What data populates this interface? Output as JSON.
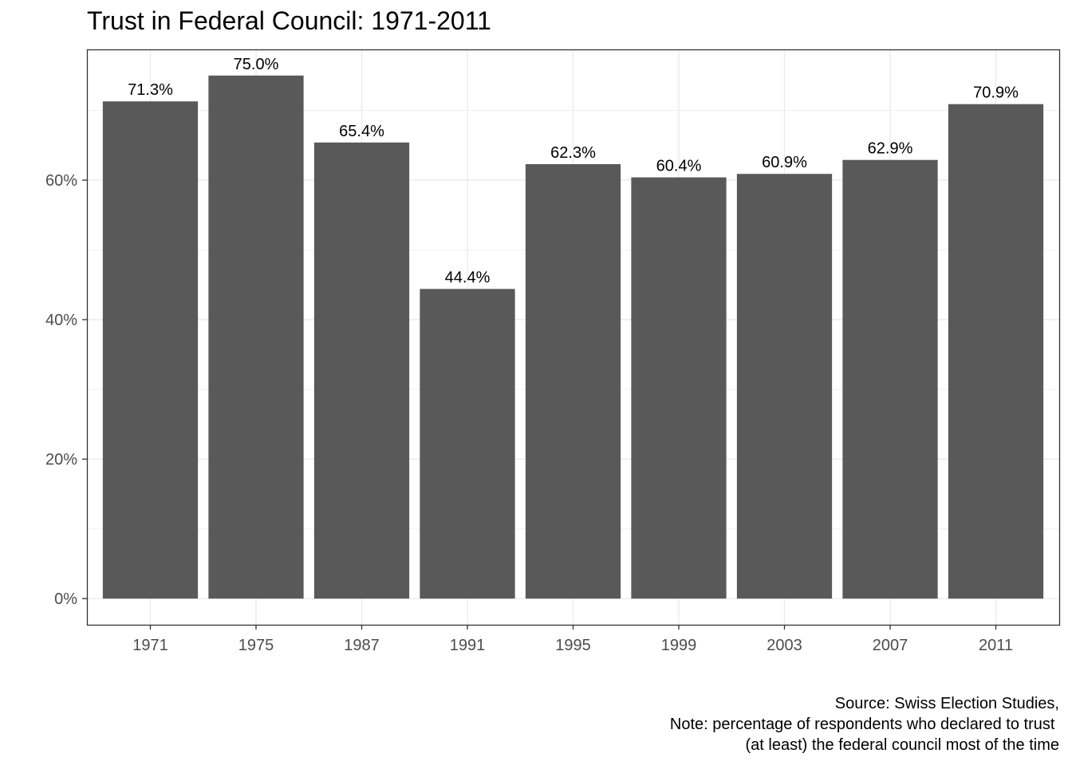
{
  "chart_data": {
    "type": "bar",
    "title": "Trust in Federal Council: 1971-2011",
    "xlabel": "",
    "ylabel": "",
    "categories": [
      "1971",
      "1975",
      "1987",
      "1991",
      "1995",
      "1999",
      "2003",
      "2007",
      "2011"
    ],
    "values": [
      71.3,
      75.0,
      65.4,
      44.4,
      62.3,
      60.4,
      60.9,
      62.9,
      70.9
    ],
    "data_labels": [
      "71.3%",
      "75.0%",
      "65.4%",
      "44.4%",
      "62.3%",
      "60.4%",
      "60.9%",
      "62.9%",
      "70.9%"
    ],
    "y_ticks": [
      0,
      20,
      40,
      60
    ],
    "y_tick_labels": [
      "0%",
      "20%",
      "40%",
      "60%"
    ],
    "ylim": [
      -3.75,
      78.75
    ],
    "grid": true,
    "bar_color": "#595959",
    "caption_lines": [
      "Source: Swiss Election Studies,",
      "Note: percentage of respondents who declared to trust ",
      "(at least) the federal council most of the time"
    ]
  }
}
